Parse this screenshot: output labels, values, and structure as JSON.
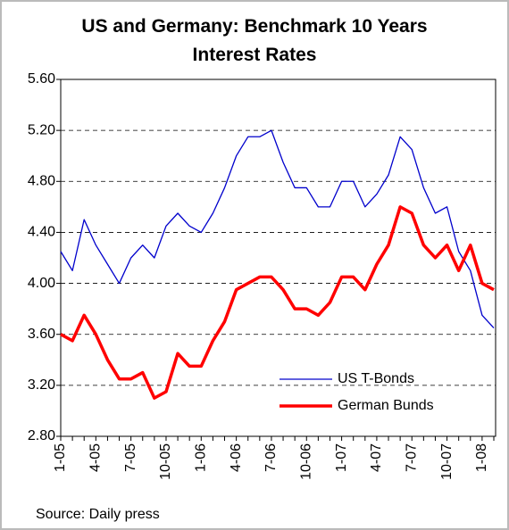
{
  "chart_data": {
    "type": "line",
    "title": "US and Germany: Benchmark 10 Years Interest Rates",
    "source": "Source: Daily press",
    "categories": [
      "1-05",
      null,
      null,
      "4-05",
      null,
      null,
      "7-05",
      null,
      null,
      "10-05",
      null,
      null,
      "1-06",
      null,
      null,
      "4-06",
      null,
      null,
      "7-06",
      null,
      null,
      "10-06",
      null,
      null,
      "1-07",
      null,
      null,
      "4-07",
      null,
      null,
      "7-07",
      null,
      null,
      "10-07",
      null,
      null,
      "1-08",
      null
    ],
    "series": [
      {
        "name": "US T-Bonds",
        "color": "#0000cc",
        "width": 1.3,
        "values": [
          4.25,
          4.1,
          4.5,
          4.3,
          4.15,
          4.0,
          4.2,
          4.3,
          4.2,
          4.45,
          4.55,
          4.45,
          4.4,
          4.55,
          4.75,
          5.0,
          5.15,
          5.15,
          5.2,
          4.95,
          4.75,
          4.75,
          4.6,
          4.6,
          4.8,
          4.8,
          4.6,
          4.7,
          4.85,
          5.15,
          5.05,
          4.75,
          4.55,
          4.6,
          4.25,
          4.1,
          3.75,
          3.65
        ]
      },
      {
        "name": "German Bunds",
        "color": "#ff0000",
        "width": 3.5,
        "values": [
          3.6,
          3.55,
          3.75,
          3.6,
          3.4,
          3.25,
          3.25,
          3.3,
          3.1,
          3.15,
          3.45,
          3.35,
          3.35,
          3.55,
          3.7,
          3.95,
          4.0,
          4.05,
          4.05,
          3.95,
          3.8,
          3.8,
          3.75,
          3.85,
          4.05,
          4.05,
          3.95,
          4.15,
          4.3,
          4.6,
          4.55,
          4.3,
          4.2,
          4.3,
          4.1,
          4.3,
          4.0,
          3.95
        ]
      }
    ],
    "ylim": [
      2.8,
      5.6
    ],
    "yticks": [
      {
        "value": 2.8,
        "label": "2.80"
      },
      {
        "value": 3.2,
        "label": "3.20"
      },
      {
        "value": 3.6,
        "label": "3.60"
      },
      {
        "value": 4.0,
        "label": "4.00"
      },
      {
        "value": 4.4,
        "label": "4.40"
      },
      {
        "value": 4.8,
        "label": "4.80"
      },
      {
        "value": 5.2,
        "label": "5.20"
      },
      {
        "value": 5.6,
        "label": "5.60"
      }
    ],
    "grid": true
  }
}
